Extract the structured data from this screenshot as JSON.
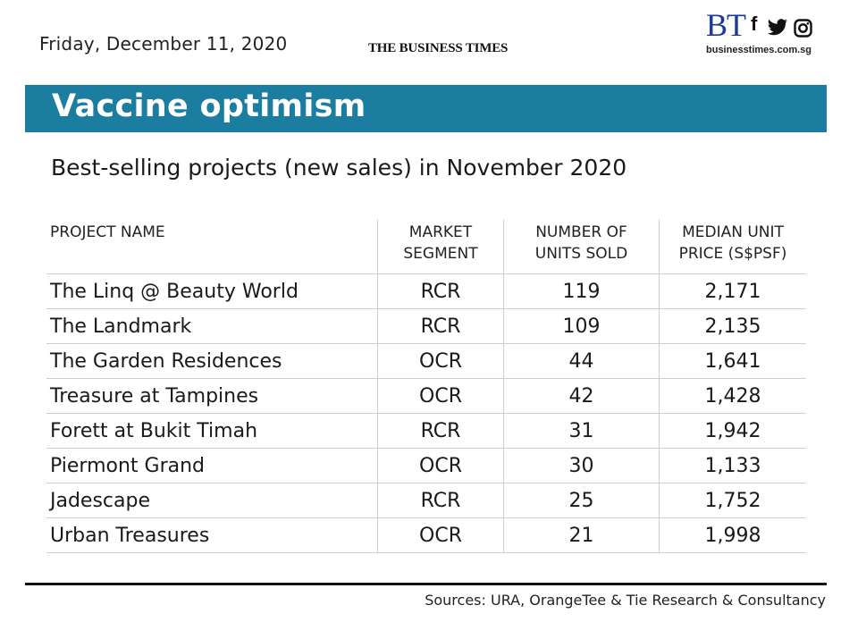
{
  "header": {
    "date": "Friday, December 11, 2020",
    "masthead": "THE BUSINESS TIMES",
    "brand_logo": "BT",
    "brand_url": "businesstimes.com.sg",
    "social_icons": [
      "facebook-icon",
      "twitter-icon",
      "instagram-icon"
    ]
  },
  "banner": {
    "title": "Vaccine optimism",
    "color": "#1b7d9f"
  },
  "subtitle": "Best-selling projects (new sales) in November 2020",
  "table": {
    "headers": [
      [
        "PROJECT NAME"
      ],
      [
        "MARKET",
        "SEGMENT"
      ],
      [
        "NUMBER OF",
        "UNITS SOLD"
      ],
      [
        "MEDIAN UNIT",
        "PRICE (S$PSF)"
      ]
    ],
    "rows": [
      [
        "The Linq @ Beauty World",
        "RCR",
        "119",
        "2,171"
      ],
      [
        "The Landmark",
        "RCR",
        "109",
        "2,135"
      ],
      [
        "The Garden Residences",
        "OCR",
        "44",
        "1,641"
      ],
      [
        "Treasure at Tampines",
        "OCR",
        "42",
        "1,428"
      ],
      [
        "Forett at Bukit Timah",
        "RCR",
        "31",
        "1,942"
      ],
      [
        "Piermont Grand",
        "OCR",
        "30",
        "1,133"
      ],
      [
        "Jadescape",
        "RCR",
        "25",
        "1,752"
      ],
      [
        "Urban Treasures",
        "OCR",
        "21",
        "1,998"
      ]
    ]
  },
  "footer": {
    "sources": "Sources: URA, OrangeTee & Tie Research & Consultancy"
  }
}
